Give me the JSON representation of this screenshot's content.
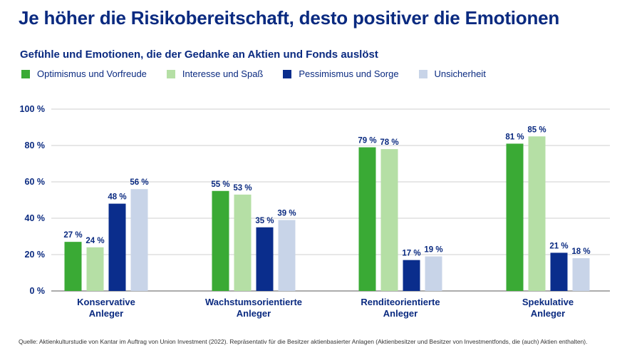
{
  "title": "Je höher die Risikobereitschaft, desto positiver die Emotionen",
  "subtitle": "Gefühle und Emotionen, die der Gedanke an Aktien und Fonds auslöst",
  "footnote": "Quelle: Aktienkulturstudie von Kantar im Auftrag von Union Investment (2022). Repräsentativ für die Besitzer aktienbasierter Anlagen (Aktienbesitzer und Besitzer von Investmentfonds, die (auch) Aktien enthalten).",
  "chart_data": {
    "type": "bar",
    "title": "Gefühle und Emotionen, die der Gedanke an Aktien und Fonds auslöst",
    "xlabel": "",
    "ylabel": "",
    "ylim": [
      0,
      100
    ],
    "yticks": [
      "0 %",
      "20 %",
      "40 %",
      "60 %",
      "80 %",
      "100 %"
    ],
    "ytick_values": [
      0,
      20,
      40,
      60,
      80,
      100
    ],
    "grid": true,
    "legend_position": "top-left",
    "categories": [
      [
        "Konservative",
        "Anleger"
      ],
      [
        "Wachstumsorientierte",
        "Anleger"
      ],
      [
        "Renditeorientierte",
        "Anleger"
      ],
      [
        "Spekulative",
        "Anleger"
      ]
    ],
    "series": [
      {
        "name": "Optimismus und Vorfreude",
        "color": "#3aaa35",
        "values": [
          27,
          55,
          79,
          81
        ],
        "labels": [
          "27 %",
          "55 %",
          "79 %",
          "81 %"
        ]
      },
      {
        "name": "Interesse und Spaß",
        "color": "#b5dfa5",
        "values": [
          24,
          53,
          78,
          85
        ],
        "labels": [
          "24 %",
          "53 %",
          "78 %",
          "85 %"
        ]
      },
      {
        "name": "Pessimismus und Sorge",
        "color": "#0a2d8c",
        "values": [
          48,
          35,
          17,
          21
        ],
        "labels": [
          "48 %",
          "35 %",
          "17 %",
          "21 %"
        ]
      },
      {
        "name": "Unsicherheit",
        "color": "#c8d4e8",
        "values": [
          56,
          39,
          19,
          18
        ],
        "labels": [
          "56 %",
          "39 %",
          "19 %",
          "18 %"
        ]
      }
    ]
  }
}
